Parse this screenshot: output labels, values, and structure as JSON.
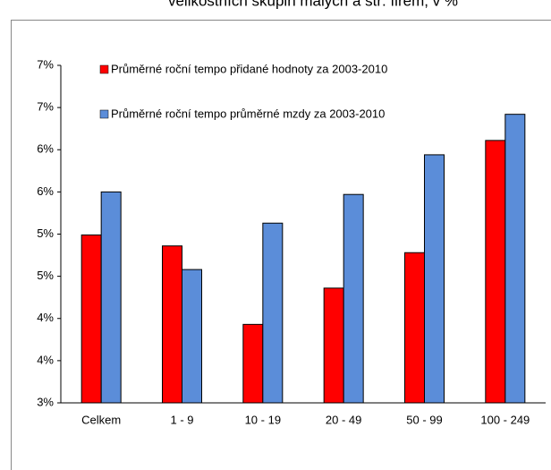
{
  "chart_data": {
    "type": "bar",
    "title": "velikostních skupin malých a stř. firem, v %",
    "categories": [
      "Celkem",
      "1 - 9",
      "10 - 19",
      "20 - 49",
      "50 - 99",
      "100 - 249"
    ],
    "series": [
      {
        "name": "Průměrné roční tempo přidané hodnoty za 2003-2010",
        "color": "#ff0000",
        "values": [
          4.99,
          4.86,
          3.93,
          4.36,
          4.78,
          6.11
        ]
      },
      {
        "name": "Průměrné roční tempo průměrné mzdy za 2003-2010",
        "color": "#5b8dd9",
        "values": [
          5.5,
          4.58,
          5.13,
          5.47,
          5.94,
          6.42
        ]
      }
    ],
    "ylim": [
      3,
      7
    ],
    "yticks": [
      {
        "value": 3,
        "label": "3%"
      },
      {
        "value": 3.5,
        "label": "4%"
      },
      {
        "value": 4,
        "label": "4%"
      },
      {
        "value": 4.5,
        "label": "5%"
      },
      {
        "value": 5,
        "label": "5%"
      },
      {
        "value": 5.5,
        "label": "6%"
      },
      {
        "value": 6,
        "label": "6%"
      },
      {
        "value": 6.5,
        "label": "7%"
      },
      {
        "value": 7,
        "label": "7%"
      }
    ],
    "grid": false
  }
}
